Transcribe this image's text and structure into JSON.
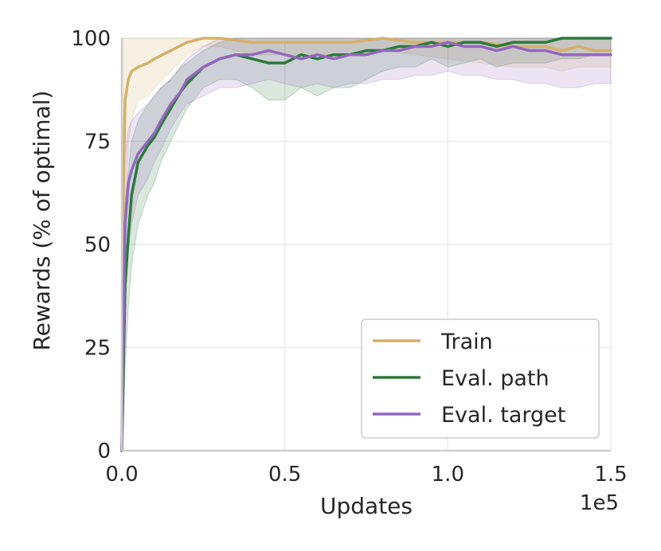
{
  "chart_data": {
    "type": "line",
    "title": "",
    "xlabel": "Updates",
    "ylabel": "Rewards (% of optimal)",
    "x_offset_text": "1e5",
    "xlim": [
      0,
      1.5
    ],
    "ylim": [
      0,
      100
    ],
    "xticks": [
      0.0,
      0.5,
      1.0,
      1.5
    ],
    "xtick_labels": [
      "0.0",
      "0.5",
      "1.0",
      "1.5"
    ],
    "yticks": [
      0,
      25,
      50,
      75,
      100
    ],
    "ytick_labels": [
      "0",
      "25",
      "50",
      "75",
      "100"
    ],
    "grid": true,
    "legend_position": "lower-right",
    "series": [
      {
        "name": "Train",
        "color": "#d4b06a",
        "x": [
          0.0,
          0.005,
          0.01,
          0.02,
          0.03,
          0.05,
          0.08,
          0.1,
          0.15,
          0.2,
          0.25,
          0.3,
          0.4,
          0.5,
          0.6,
          0.7,
          0.8,
          0.9,
          1.0,
          1.1,
          1.2,
          1.3,
          1.35,
          1.4,
          1.45,
          1.5
        ],
        "y": [
          0,
          65,
          85,
          90,
          92,
          93,
          94,
          95,
          97,
          99,
          100,
          100,
          99,
          99,
          99,
          99,
          100,
          99,
          99,
          99,
          98,
          98,
          97,
          98,
          97,
          97
        ],
        "lower": [
          0,
          30,
          60,
          75,
          80,
          85,
          86,
          88,
          92,
          96,
          98,
          98,
          96,
          96,
          96,
          96,
          97,
          96,
          95,
          94,
          93,
          93,
          92,
          93,
          93,
          93
        ],
        "upper": [
          5,
          100,
          100,
          100,
          100,
          100,
          100,
          100,
          100,
          100,
          100,
          100,
          100,
          100,
          100,
          100,
          100,
          100,
          100,
          100,
          100,
          100,
          100,
          100,
          100,
          100
        ]
      },
      {
        "name": "Eval. path",
        "color": "#2b7a3b",
        "x": [
          0.0,
          0.005,
          0.01,
          0.02,
          0.03,
          0.05,
          0.08,
          0.1,
          0.12,
          0.15,
          0.18,
          0.2,
          0.25,
          0.3,
          0.35,
          0.4,
          0.45,
          0.5,
          0.55,
          0.6,
          0.65,
          0.7,
          0.75,
          0.8,
          0.85,
          0.9,
          0.95,
          1.0,
          1.05,
          1.1,
          1.15,
          1.2,
          1.25,
          1.3,
          1.35,
          1.4,
          1.45,
          1.5
        ],
        "y": [
          0,
          20,
          40,
          52,
          62,
          70,
          74,
          76,
          79,
          83,
          87,
          89,
          93,
          95,
          96,
          95,
          94,
          94,
          96,
          95,
          96,
          96,
          97,
          97,
          98,
          98,
          99,
          98,
          99,
          99,
          98,
          99,
          99,
          99,
          100,
          100,
          100,
          100
        ],
        "lower": [
          0,
          5,
          20,
          35,
          45,
          55,
          62,
          65,
          70,
          75,
          80,
          83,
          88,
          90,
          90,
          88,
          85,
          85,
          88,
          86,
          88,
          88,
          90,
          92,
          93,
          93,
          95,
          93,
          94,
          95,
          93,
          94,
          94,
          94,
          95,
          95,
          96,
          96
        ],
        "upper": [
          5,
          45,
          60,
          68,
          75,
          80,
          84,
          86,
          88,
          90,
          93,
          94,
          97,
          99,
          100,
          100,
          100,
          100,
          100,
          100,
          100,
          100,
          100,
          100,
          100,
          100,
          100,
          100,
          100,
          100,
          100,
          100,
          100,
          100,
          100,
          100,
          100,
          100
        ]
      },
      {
        "name": "Eval. target",
        "color": "#9467bd",
        "x": [
          0.0,
          0.005,
          0.01,
          0.02,
          0.03,
          0.05,
          0.08,
          0.1,
          0.12,
          0.15,
          0.18,
          0.2,
          0.25,
          0.3,
          0.35,
          0.4,
          0.45,
          0.5,
          0.55,
          0.6,
          0.65,
          0.7,
          0.75,
          0.8,
          0.85,
          0.9,
          0.95,
          1.0,
          1.05,
          1.1,
          1.15,
          1.2,
          1.25,
          1.3,
          1.35,
          1.4,
          1.45,
          1.5
        ],
        "y": [
          0,
          30,
          55,
          65,
          68,
          72,
          75,
          77,
          80,
          84,
          87,
          90,
          93,
          95,
          96,
          96,
          97,
          96,
          95,
          96,
          95,
          96,
          96,
          97,
          97,
          98,
          98,
          99,
          98,
          98,
          97,
          98,
          97,
          97,
          96,
          96,
          96,
          96
        ],
        "lower": [
          0,
          10,
          35,
          48,
          55,
          62,
          66,
          70,
          73,
          78,
          82,
          84,
          86,
          88,
          88,
          89,
          90,
          89,
          88,
          89,
          88,
          89,
          89,
          90,
          90,
          91,
          91,
          92,
          91,
          91,
          90,
          90,
          89,
          89,
          88,
          88,
          89,
          89
        ],
        "upper": [
          5,
          55,
          72,
          78,
          80,
          82,
          84,
          86,
          88,
          90,
          93,
          95,
          98,
          100,
          100,
          100,
          100,
          100,
          100,
          100,
          100,
          100,
          100,
          100,
          100,
          100,
          100,
          100,
          100,
          100,
          100,
          100,
          100,
          100,
          100,
          100,
          100,
          100
        ]
      }
    ]
  }
}
